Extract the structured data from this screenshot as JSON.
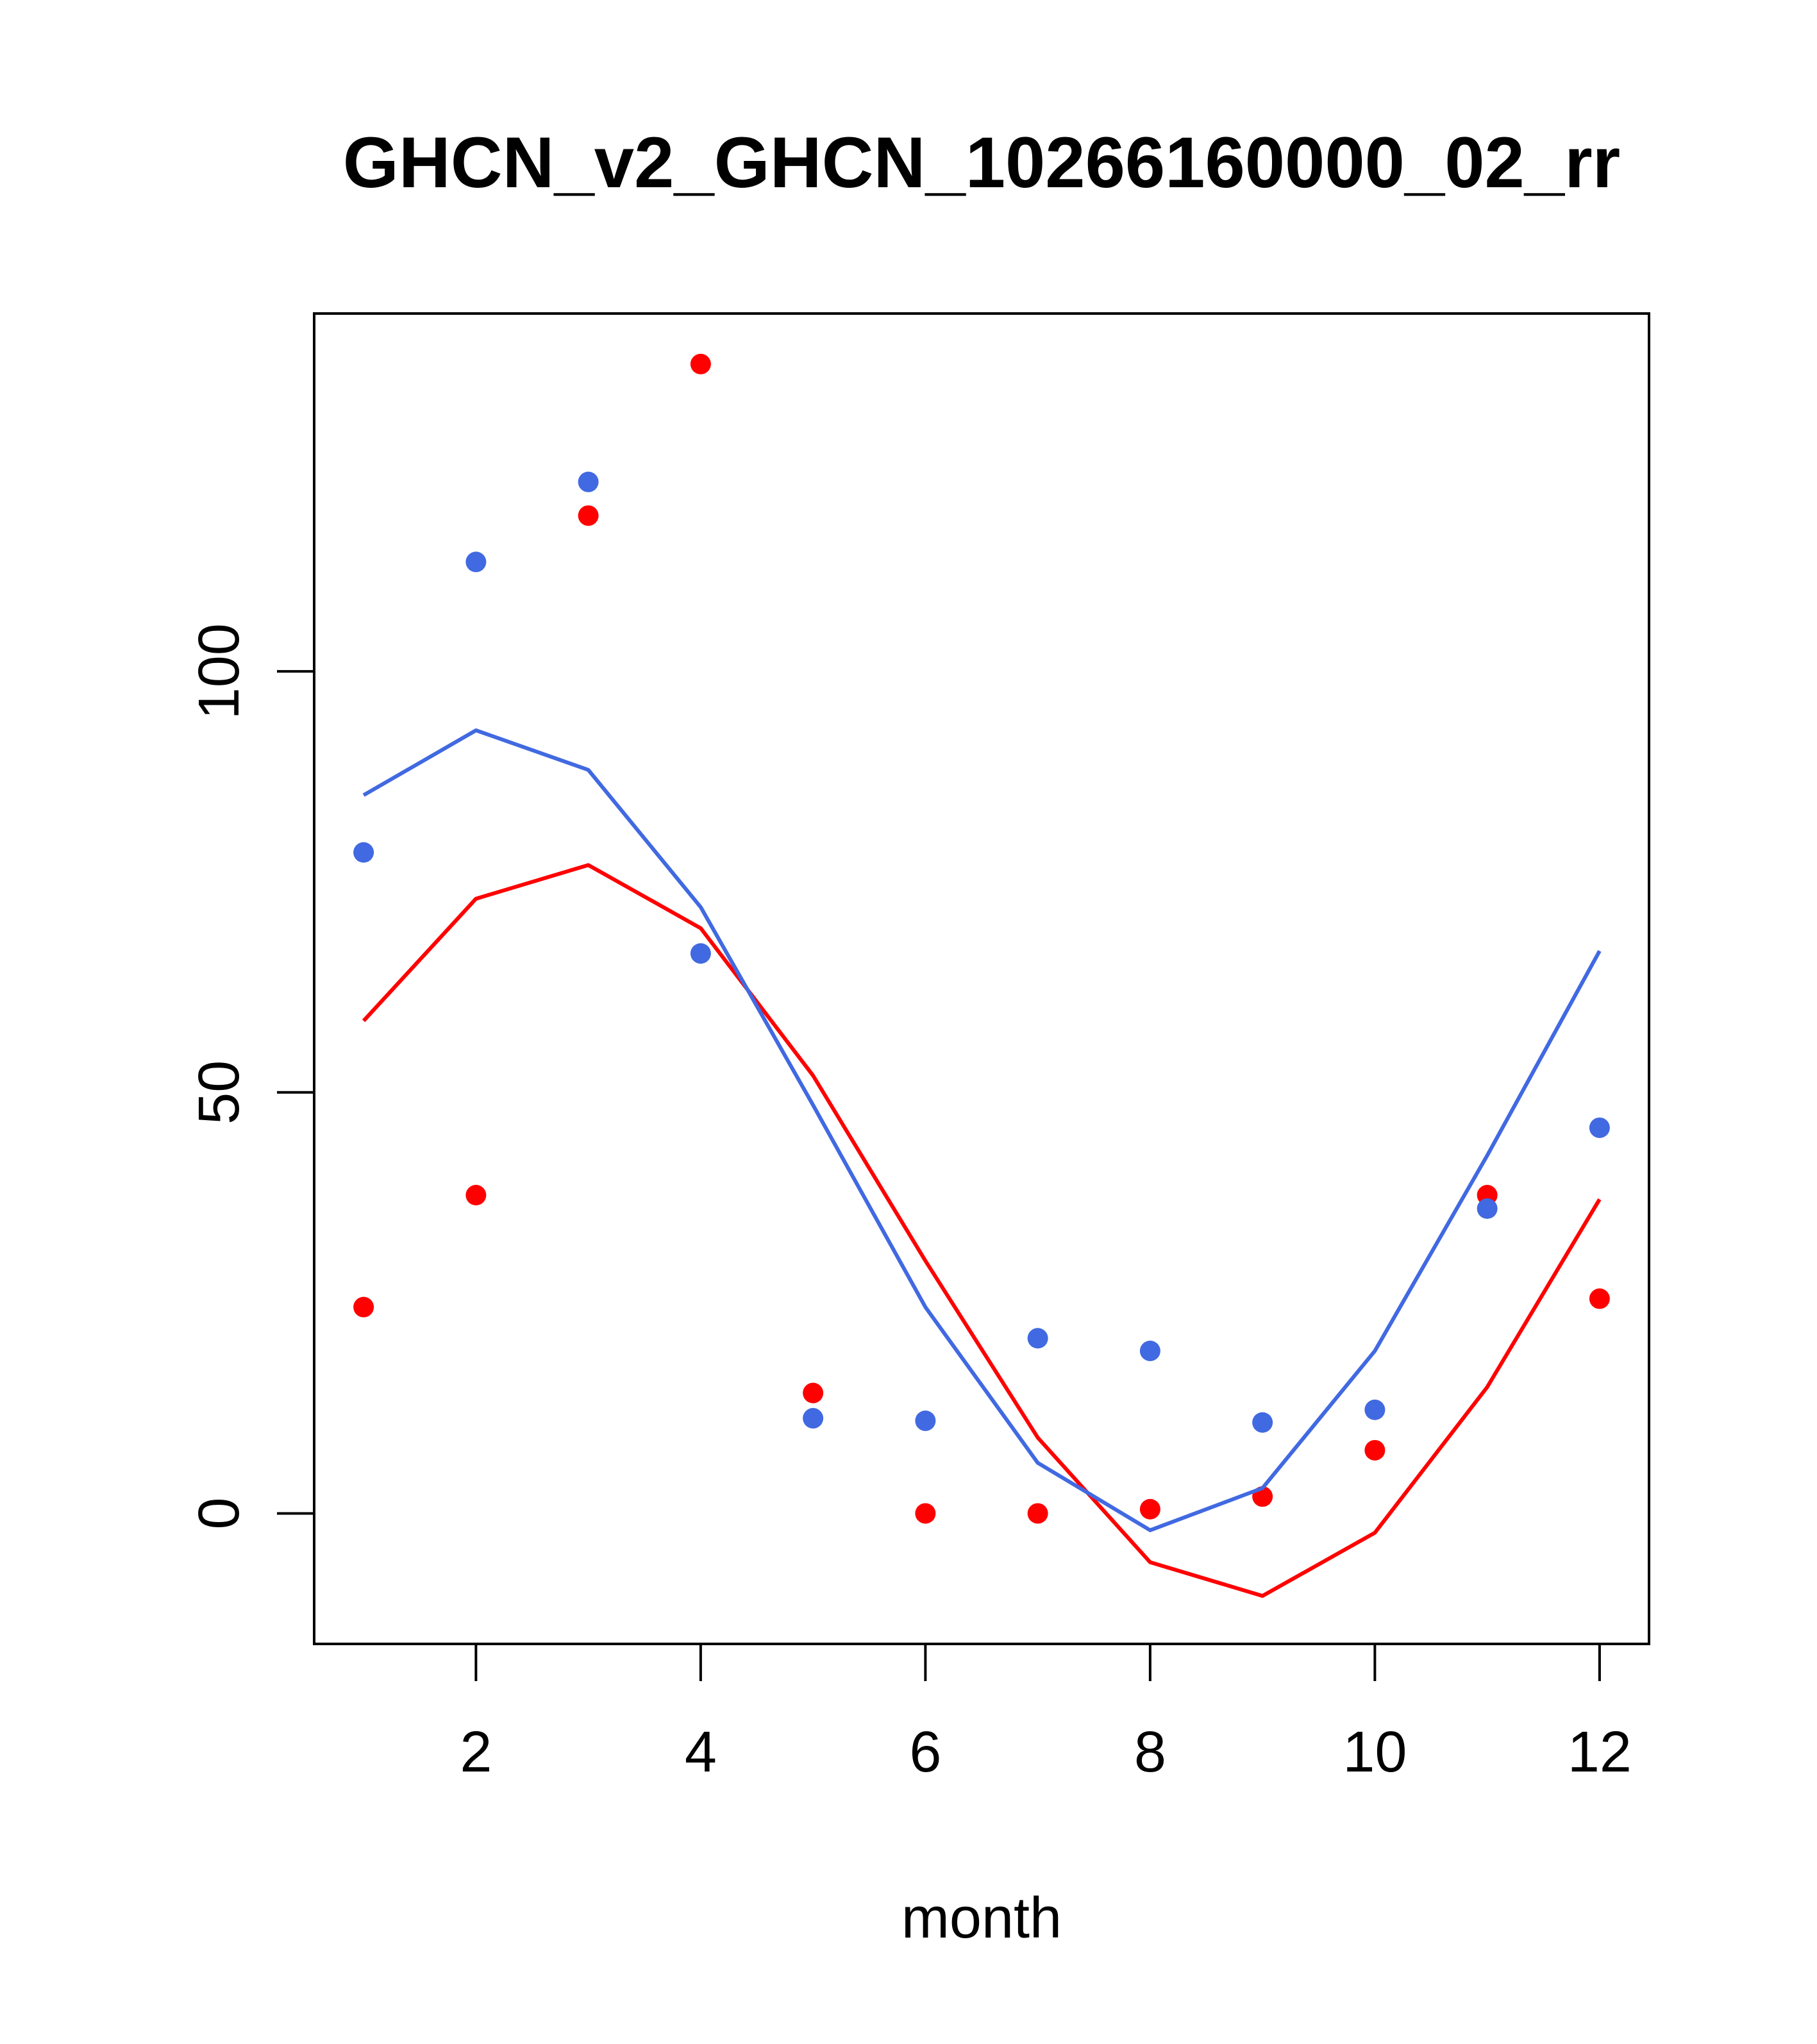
{
  "chart_data": {
    "type": "scatter",
    "title": "GHCN_v2_GHCN_10266160000_02_rr",
    "xlabel": "month",
    "ylabel": "",
    "xlim": [
      0.56,
      12.44
    ],
    "ylim": [
      -15.5,
      142.5
    ],
    "x_ticks": [
      2,
      4,
      6,
      8,
      10,
      12
    ],
    "y_ticks": [
      0,
      50,
      100
    ],
    "x_tick_labels": [
      "2",
      "4",
      "6",
      "8",
      "10",
      "12"
    ],
    "y_tick_labels": [
      "0",
      "50",
      "100"
    ],
    "grid": false,
    "series": [
      {
        "name": "red points",
        "kind": "points",
        "color": "#ff0000",
        "x": [
          1,
          2,
          3,
          4,
          5,
          6,
          7,
          8,
          9,
          10,
          11,
          12
        ],
        "values": [
          24.5,
          37.8,
          118.5,
          136.5,
          14.3,
          0,
          0,
          0.5,
          2,
          7.5,
          37.8,
          25.5
        ]
      },
      {
        "name": "blue points",
        "kind": "points",
        "color": "#4169e1",
        "x": [
          1,
          2,
          3,
          4,
          5,
          6,
          7,
          8,
          9,
          10,
          11,
          12
        ],
        "values": [
          78.5,
          113,
          122.5,
          66.5,
          11.3,
          11,
          20.8,
          19.3,
          10.8,
          12.3,
          36.2,
          45.8
        ]
      },
      {
        "name": "red line",
        "kind": "line",
        "color": "#ff0000",
        "x": [
          1,
          2,
          3,
          4,
          5,
          6,
          7,
          8,
          9,
          10,
          11,
          12
        ],
        "values": [
          58.5,
          73,
          77,
          69.5,
          52,
          30,
          9,
          -5.8,
          -9.8,
          -2.3,
          15,
          37.3
        ]
      },
      {
        "name": "blue line",
        "kind": "line",
        "color": "#4169e1",
        "x": [
          1,
          2,
          3,
          4,
          5,
          6,
          7,
          8,
          9,
          10,
          11,
          12
        ],
        "values": [
          85.3,
          93,
          88.3,
          72,
          48.5,
          24.5,
          6,
          -2,
          3,
          19.3,
          42.5,
          66.8
        ]
      }
    ]
  }
}
